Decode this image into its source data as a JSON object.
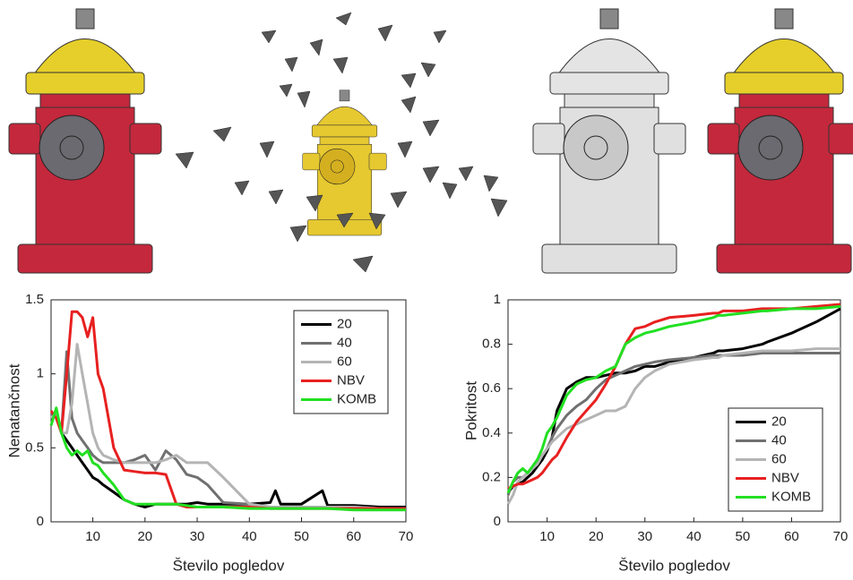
{
  "chart_data": [
    {
      "type": "line",
      "xlabel": "Število pogledov",
      "ylabel": "Nenatančnost",
      "x": [
        2,
        3,
        4,
        5,
        6,
        7,
        8,
        9,
        10,
        11,
        12,
        14,
        16,
        18,
        20,
        22,
        24,
        26,
        28,
        30,
        32,
        35,
        40,
        44,
        45,
        46,
        50,
        54,
        55,
        60,
        65,
        70
      ],
      "xlim": [
        2,
        70
      ],
      "xticks": [
        10,
        20,
        30,
        40,
        50,
        60,
        70
      ],
      "ylim": [
        0,
        1.5
      ],
      "yticks": [
        0,
        0.5,
        1,
        1.5
      ],
      "legend": "upper right",
      "series": [
        {
          "name": "20",
          "color": "#000000",
          "values": [
            0.7,
            0.75,
            0.6,
            0.55,
            0.5,
            0.45,
            0.4,
            0.35,
            0.3,
            0.28,
            0.25,
            0.2,
            0.15,
            0.12,
            0.1,
            0.12,
            0.12,
            0.12,
            0.12,
            0.13,
            0.12,
            0.12,
            0.12,
            0.13,
            0.21,
            0.12,
            0.12,
            0.21,
            0.11,
            0.11,
            0.1,
            0.1
          ]
        },
        {
          "name": "40",
          "color": "#707070",
          "values": [
            0.7,
            0.75,
            0.6,
            1.15,
            0.7,
            0.6,
            0.55,
            0.5,
            0.45,
            0.42,
            0.4,
            0.4,
            0.4,
            0.42,
            0.45,
            0.35,
            0.48,
            0.42,
            0.32,
            0.3,
            0.25,
            0.13,
            0.12,
            0.1,
            0.1,
            0.1,
            0.1,
            0.1,
            0.1,
            0.1,
            0.09,
            0.09
          ]
        },
        {
          "name": "60",
          "color": "#b4b4b4",
          "values": [
            0.7,
            0.75,
            0.6,
            0.6,
            0.8,
            1.2,
            1.0,
            0.8,
            0.6,
            0.5,
            0.45,
            0.42,
            0.4,
            0.4,
            0.4,
            0.4,
            0.42,
            0.45,
            0.4,
            0.4,
            0.4,
            0.3,
            0.12,
            0.1,
            0.1,
            0.1,
            0.1,
            0.1,
            0.1,
            0.1,
            0.09,
            0.09
          ]
        },
        {
          "name": "NBV",
          "color": "#e82020",
          "values": [
            0.75,
            0.7,
            0.6,
            1.0,
            1.42,
            1.42,
            1.38,
            1.25,
            1.38,
            1.0,
            0.9,
            0.5,
            0.35,
            0.34,
            0.33,
            0.33,
            0.32,
            0.12,
            0.1,
            0.1,
            0.1,
            0.1,
            0.1,
            0.09,
            0.09,
            0.09,
            0.09,
            0.09,
            0.09,
            0.09,
            0.09,
            0.09
          ]
        },
        {
          "name": "KOMB",
          "color": "#22e022",
          "values": [
            0.65,
            0.77,
            0.6,
            0.5,
            0.45,
            0.48,
            0.45,
            0.48,
            0.4,
            0.38,
            0.33,
            0.25,
            0.15,
            0.12,
            0.12,
            0.12,
            0.12,
            0.12,
            0.11,
            0.1,
            0.1,
            0.1,
            0.09,
            0.09,
            0.09,
            0.09,
            0.09,
            0.09,
            0.09,
            0.08,
            0.08,
            0.08
          ]
        }
      ]
    },
    {
      "type": "line",
      "xlabel": "Število pogledov",
      "ylabel": "Pokritost",
      "x": [
        2,
        3,
        4,
        5,
        6,
        7,
        8,
        9,
        10,
        11,
        12,
        14,
        16,
        18,
        20,
        22,
        24,
        26,
        28,
        30,
        32,
        35,
        40,
        44,
        45,
        46,
        50,
        54,
        55,
        60,
        65,
        70
      ],
      "xlim": [
        2,
        70
      ],
      "xticks": [
        10,
        20,
        30,
        40,
        50,
        60,
        70
      ],
      "ylim": [
        0,
        1
      ],
      "yticks": [
        0,
        0.2,
        0.4,
        0.6,
        0.8,
        1
      ],
      "legend": "lower right",
      "series": [
        {
          "name": "20",
          "color": "#000000",
          "values": [
            0.13,
            0.16,
            0.17,
            0.18,
            0.2,
            0.22,
            0.25,
            0.28,
            0.32,
            0.38,
            0.5,
            0.6,
            0.63,
            0.65,
            0.65,
            0.66,
            0.67,
            0.67,
            0.68,
            0.7,
            0.7,
            0.72,
            0.74,
            0.76,
            0.77,
            0.77,
            0.78,
            0.8,
            0.81,
            0.85,
            0.9,
            0.96
          ]
        },
        {
          "name": "40",
          "color": "#707070",
          "values": [
            0.12,
            0.18,
            0.2,
            0.2,
            0.22,
            0.24,
            0.26,
            0.3,
            0.33,
            0.38,
            0.42,
            0.48,
            0.52,
            0.55,
            0.6,
            0.64,
            0.66,
            0.68,
            0.7,
            0.71,
            0.72,
            0.73,
            0.74,
            0.75,
            0.75,
            0.75,
            0.75,
            0.76,
            0.76,
            0.76,
            0.76,
            0.76
          ]
        },
        {
          "name": "60",
          "color": "#b4b4b4",
          "values": [
            0.08,
            0.12,
            0.18,
            0.2,
            0.22,
            0.24,
            0.26,
            0.3,
            0.33,
            0.36,
            0.38,
            0.42,
            0.44,
            0.46,
            0.48,
            0.5,
            0.5,
            0.52,
            0.6,
            0.65,
            0.68,
            0.71,
            0.73,
            0.74,
            0.74,
            0.75,
            0.76,
            0.77,
            0.77,
            0.77,
            0.78,
            0.78
          ]
        },
        {
          "name": "NBV",
          "color": "#e82020",
          "values": [
            0.15,
            0.16,
            0.17,
            0.17,
            0.18,
            0.19,
            0.2,
            0.22,
            0.25,
            0.28,
            0.3,
            0.38,
            0.45,
            0.5,
            0.55,
            0.62,
            0.7,
            0.8,
            0.87,
            0.88,
            0.9,
            0.92,
            0.93,
            0.94,
            0.94,
            0.95,
            0.95,
            0.96,
            0.96,
            0.96,
            0.97,
            0.98
          ]
        },
        {
          "name": "KOMB",
          "color": "#22e022",
          "values": [
            0.13,
            0.18,
            0.22,
            0.24,
            0.22,
            0.25,
            0.28,
            0.33,
            0.4,
            0.43,
            0.47,
            0.57,
            0.62,
            0.64,
            0.65,
            0.68,
            0.7,
            0.8,
            0.83,
            0.85,
            0.86,
            0.88,
            0.9,
            0.92,
            0.93,
            0.93,
            0.94,
            0.95,
            0.95,
            0.96,
            0.96,
            0.97
          ]
        }
      ]
    }
  ]
}
